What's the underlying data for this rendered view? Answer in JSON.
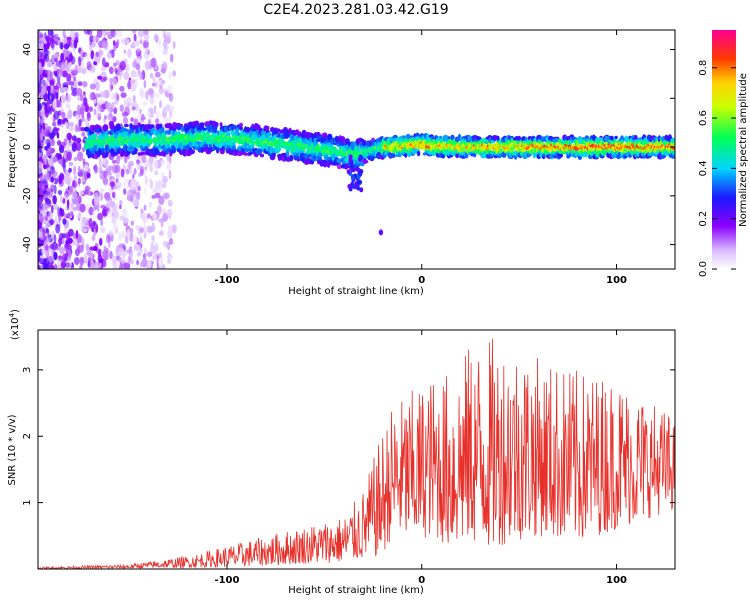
{
  "figure_title": "C2E4.2023.281.03.42.G19",
  "chart_data": [
    {
      "type": "heatmap",
      "xlabel": "Height of straight line (km)",
      "ylabel": "Frequency (Hz)",
      "xlim": [
        -197,
        130
      ],
      "ylim": [
        -50,
        48
      ],
      "xticks": [
        -100,
        0,
        100
      ],
      "yticks": [
        -40,
        -20,
        0,
        20,
        40
      ],
      "colorbar": {
        "label": "Normalized spectral amplitude",
        "range": [
          0.0,
          0.95
        ],
        "ticks": [
          0.0,
          0.2,
          0.4,
          0.6,
          0.8
        ]
      },
      "ridge": {
        "x": [
          -170,
          -150,
          -130,
          -110,
          -90,
          -70,
          -50,
          -35,
          -28,
          -20,
          0,
          20,
          40,
          60,
          80,
          100,
          125
        ],
        "y": [
          2,
          3,
          3,
          4,
          3,
          1,
          -1,
          -3,
          -2,
          0,
          1,
          0,
          0,
          0,
          0,
          0,
          0
        ]
      }
    },
    {
      "type": "line",
      "xlabel": "Height of straight line (km)",
      "ylabel": "SNR (10 * v/v)",
      "y_scale_label": "(x10^4)",
      "y_scale_base": "(x10",
      "y_scale_exp": "4",
      "y_scale_close": ")",
      "xlim": [
        -197,
        130
      ],
      "ylim": [
        0,
        3.6
      ],
      "xticks": [
        -100,
        0,
        100
      ],
      "yticks": [
        1,
        2,
        3
      ],
      "line_color": "#e8302a",
      "envelope": {
        "x": [
          -197,
          -150,
          -120,
          -100,
          -80,
          -60,
          -40,
          -30,
          -20,
          -15,
          -5,
          5,
          15,
          25,
          35,
          45,
          60,
          80,
          100,
          120,
          130
        ],
        "upper": [
          0.03,
          0.07,
          0.2,
          0.35,
          0.5,
          0.65,
          0.8,
          1.2,
          2.1,
          2.5,
          2.7,
          2.9,
          3.0,
          3.4,
          3.5,
          3.5,
          3.2,
          3.0,
          2.9,
          2.5,
          2.3
        ],
        "lower": [
          0.0,
          0.01,
          0.02,
          0.03,
          0.05,
          0.08,
          0.1,
          0.15,
          0.2,
          0.5,
          0.4,
          0.5,
          0.3,
          0.4,
          0.3,
          0.4,
          0.5,
          0.4,
          0.6,
          0.8,
          0.9
        ]
      }
    }
  ]
}
